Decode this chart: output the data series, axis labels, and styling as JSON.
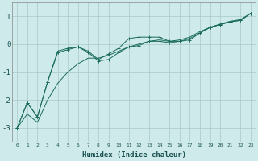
{
  "background_color": "#ceeaea",
  "grid_color": "#aac8c8",
  "line_color": "#1a6b5a",
  "xlabel": "Humidex (Indice chaleur)",
  "ylim": [
    -3.5,
    1.5
  ],
  "xlim": [
    -0.5,
    23.5
  ],
  "yticks": [
    -3,
    -2,
    -1,
    0,
    1
  ],
  "xticks": [
    0,
    1,
    2,
    3,
    4,
    5,
    6,
    7,
    8,
    9,
    10,
    11,
    12,
    13,
    14,
    15,
    16,
    17,
    18,
    19,
    20,
    21,
    22,
    23
  ],
  "line1_x": [
    0,
    1,
    2,
    3,
    4,
    5,
    6,
    7,
    8,
    9,
    10,
    11,
    12,
    13,
    14,
    15,
    16,
    17,
    18,
    19,
    20,
    21,
    22,
    23
  ],
  "line1_y": [
    -3.0,
    -2.1,
    -2.6,
    -1.35,
    -0.25,
    -0.15,
    -0.1,
    -0.25,
    -0.55,
    -0.35,
    -0.15,
    0.2,
    0.25,
    0.25,
    0.25,
    0.1,
    0.1,
    0.15,
    0.4,
    0.6,
    0.7,
    0.8,
    0.85,
    1.1
  ],
  "line2_x": [
    0,
    1,
    2,
    3,
    4,
    5,
    6,
    7,
    8,
    9,
    10,
    11,
    12,
    13,
    14,
    15,
    16,
    17,
    18,
    19,
    20,
    21,
    22,
    23
  ],
  "line2_y": [
    -3.0,
    -2.1,
    -2.6,
    -1.35,
    -0.3,
    -0.2,
    -0.1,
    -0.3,
    -0.6,
    -0.55,
    -0.3,
    -0.1,
    -0.05,
    0.1,
    0.1,
    0.05,
    0.1,
    0.2,
    0.4,
    0.6,
    0.7,
    0.8,
    0.85,
    1.1
  ],
  "line3_x": [
    0,
    1,
    2,
    3,
    4,
    5,
    6,
    7,
    8,
    9,
    10,
    11,
    12,
    13,
    14,
    15,
    16,
    17,
    18,
    19,
    20,
    21,
    22,
    23
  ],
  "line3_y": [
    -3.0,
    -2.5,
    -2.8,
    -2.0,
    -1.4,
    -1.0,
    -0.7,
    -0.5,
    -0.5,
    -0.4,
    -0.25,
    -0.1,
    0.0,
    0.1,
    0.15,
    0.1,
    0.15,
    0.25,
    0.45,
    0.6,
    0.72,
    0.82,
    0.88,
    1.1
  ]
}
